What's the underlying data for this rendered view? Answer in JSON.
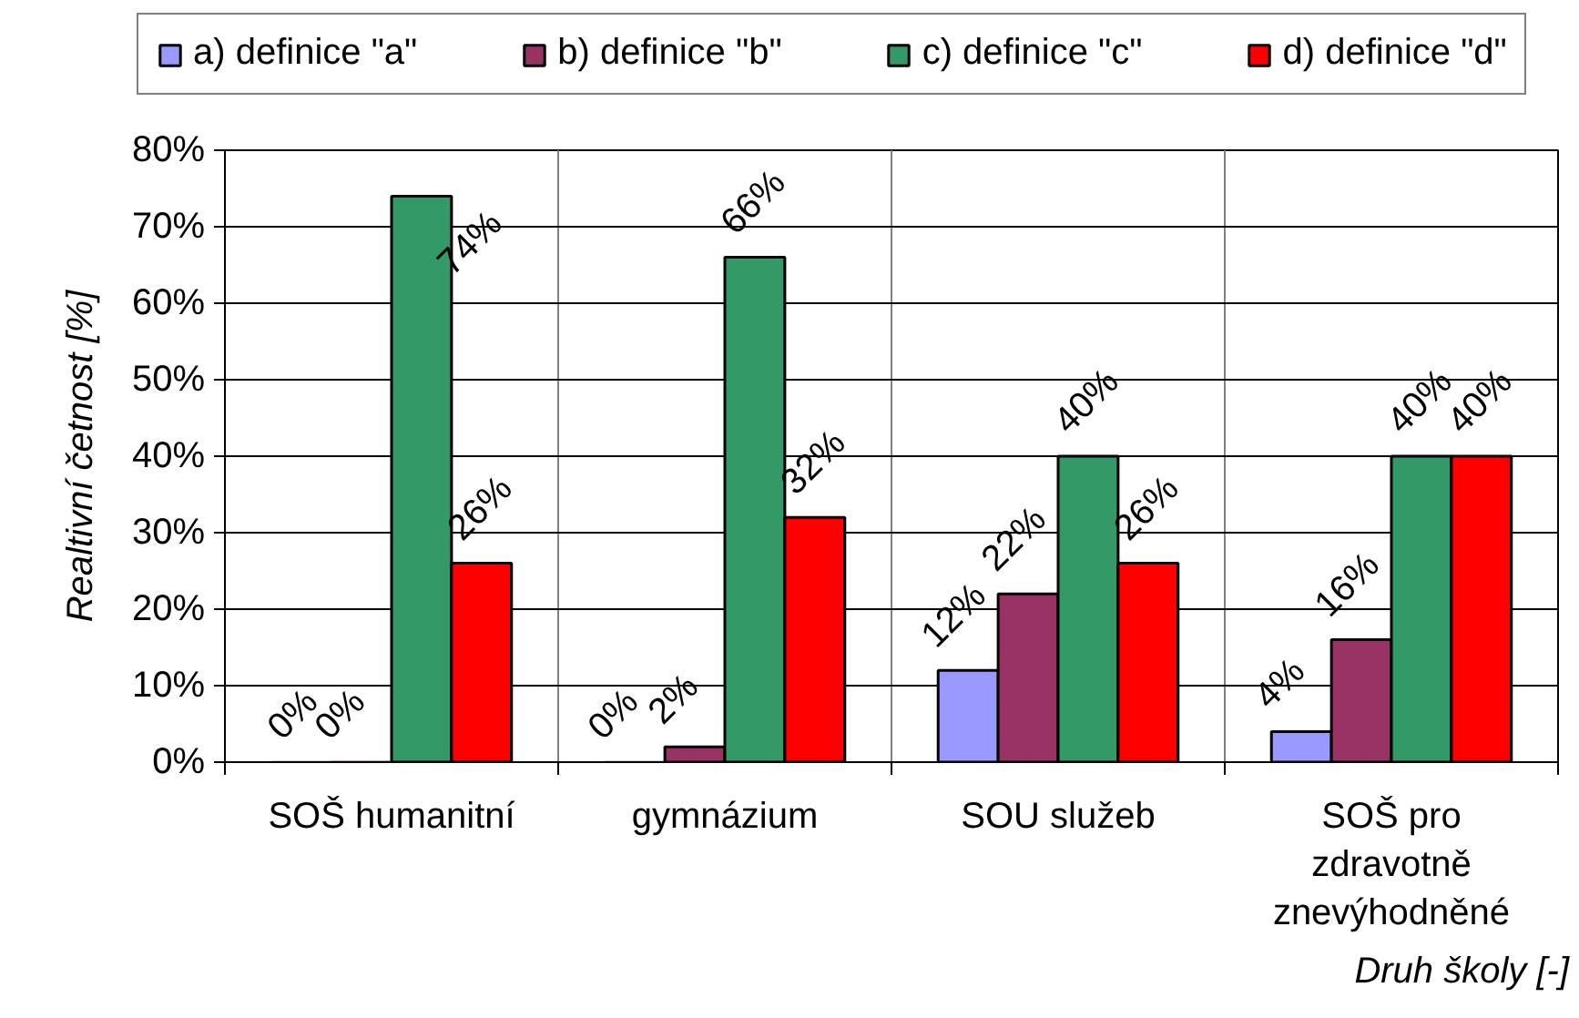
{
  "chart_data": {
    "type": "bar",
    "categories": [
      "SOŠ humanitní",
      "gymnázium",
      "SOU služeb",
      "SOŠ pro zdravotně znevýhodněné"
    ],
    "series": [
      {
        "name": "a) definice \"a\"",
        "color": "#9999ff",
        "values": [
          0,
          0,
          12,
          4
        ],
        "value_labels": [
          "0%",
          "0%",
          "12%",
          "4%"
        ]
      },
      {
        "name": "b) definice \"b\"",
        "color": "#993366",
        "values": [
          0,
          2,
          22,
          16
        ],
        "value_labels": [
          "0%",
          "2%",
          "22%",
          "16%"
        ]
      },
      {
        "name": "c) definice \"c\"",
        "color": "#339966",
        "values": [
          74,
          66,
          40,
          40
        ],
        "value_labels": [
          "74%",
          "66%",
          "40%",
          "40%"
        ]
      },
      {
        "name": "d) definice \"d\"",
        "color": "#ff0000",
        "values": [
          26,
          32,
          26,
          40
        ],
        "value_labels": [
          "26%",
          "32%",
          "26%",
          "40%"
        ]
      }
    ],
    "xlabel": "Druh školy [-]",
    "ylabel": "Realtivní četnost [%]",
    "ylim": [
      0,
      80
    ],
    "yticks": [
      {
        "value": 0,
        "label": "0%"
      },
      {
        "value": 10,
        "label": "10%"
      },
      {
        "value": 20,
        "label": "20%"
      },
      {
        "value": 30,
        "label": "30%"
      },
      {
        "value": 40,
        "label": "40%"
      },
      {
        "value": 50,
        "label": "50%"
      },
      {
        "value": 60,
        "label": "60%"
      },
      {
        "value": 70,
        "label": "70%"
      },
      {
        "value": 80,
        "label": "80%"
      }
    ],
    "grid": true,
    "legend": "top"
  }
}
